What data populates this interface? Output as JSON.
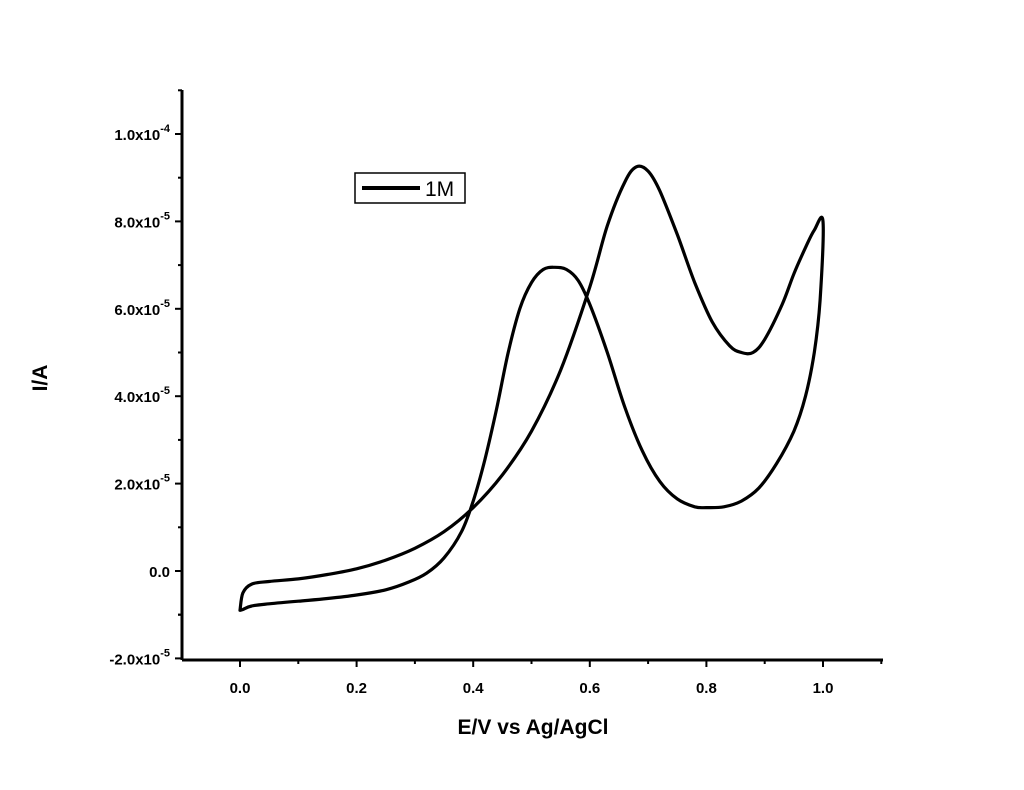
{
  "chart_data": {
    "type": "line",
    "title": "",
    "xlabel": "E/V vs Ag/AgCl",
    "ylabel": "I/A",
    "xlim": [
      -0.1,
      1.1
    ],
    "ylim": [
      -2.2e-05,
      0.00011
    ],
    "grid": false,
    "legend_position": "top-left",
    "x_ticks": [
      {
        "value": 0.0,
        "label": "0.0"
      },
      {
        "value": 0.2,
        "label": "0.2"
      },
      {
        "value": 0.4,
        "label": "0.4"
      },
      {
        "value": 0.6,
        "label": "0.6"
      },
      {
        "value": 0.8,
        "label": "0.8"
      },
      {
        "value": 1.0,
        "label": "1.0"
      }
    ],
    "y_ticks": [
      {
        "value": -2e-05,
        "mantissa": "-2.0x10",
        "exp": "-5"
      },
      {
        "value": 0.0,
        "mantissa": "0.0",
        "exp": ""
      },
      {
        "value": 2e-05,
        "mantissa": "2.0x10",
        "exp": "-5"
      },
      {
        "value": 4e-05,
        "mantissa": "4.0x10",
        "exp": "-5"
      },
      {
        "value": 6e-05,
        "mantissa": "6.0x10",
        "exp": "-5"
      },
      {
        "value": 8e-05,
        "mantissa": "8.0x10",
        "exp": "-5"
      },
      {
        "value": 0.0001,
        "mantissa": "1.0x10",
        "exp": "-4"
      }
    ],
    "series": [
      {
        "name": "1M",
        "color": "#000000",
        "x": [
          0.0,
          0.005,
          0.02,
          0.05,
          0.1,
          0.15,
          0.2,
          0.25,
          0.3,
          0.35,
          0.4,
          0.45,
          0.5,
          0.55,
          0.6,
          0.63,
          0.66,
          0.68,
          0.7,
          0.72,
          0.75,
          0.78,
          0.81,
          0.84,
          0.86,
          0.88,
          0.9,
          0.93,
          0.95,
          0.97,
          0.985,
          1.0,
          0.995,
          0.985,
          0.97,
          0.95,
          0.92,
          0.89,
          0.86,
          0.83,
          0.8,
          0.78,
          0.75,
          0.72,
          0.69,
          0.66,
          0.63,
          0.6,
          0.58,
          0.56,
          0.54,
          0.52,
          0.5,
          0.48,
          0.46,
          0.44,
          0.42,
          0.4,
          0.38,
          0.35,
          0.32,
          0.29,
          0.25,
          0.2,
          0.15,
          0.1,
          0.05,
          0.02,
          0.005,
          0.0
        ],
        "y": [
          -9e-06,
          -5e-06,
          -3e-06,
          -2.4e-06,
          -1.8e-06,
          -8e-07,
          5e-07,
          2.5e-06,
          5.2e-06,
          9e-06,
          1.45e-05,
          2.2e-05,
          3.2e-05,
          4.6e-05,
          6.5e-05,
          7.9e-05,
          8.9e-05,
          9.25e-05,
          9.15e-05,
          8.7e-05,
          7.7e-05,
          6.6e-05,
          5.7e-05,
          5.15e-05,
          5e-05,
          5e-05,
          5.3e-05,
          6.1e-05,
          6.8e-05,
          7.4e-05,
          7.8e-05,
          8e-05,
          6.2e-05,
          5e-05,
          4e-05,
          3.2e-05,
          2.45e-05,
          1.9e-05,
          1.6e-05,
          1.47e-05,
          1.45e-05,
          1.47e-05,
          1.65e-05,
          2.05e-05,
          2.75e-05,
          3.75e-05,
          5e-05,
          6.1e-05,
          6.65e-05,
          6.9e-05,
          6.95e-05,
          6.9e-05,
          6.6e-05,
          6e-05,
          5e-05,
          3.7e-05,
          2.55e-05,
          1.6e-05,
          9e-06,
          3e-06,
          -5e-07,
          -2.5e-06,
          -4.3e-06,
          -5.5e-06,
          -6.3e-06,
          -6.9e-06,
          -7.5e-06,
          -8e-06,
          -8.8e-06,
          -9e-06
        ]
      }
    ],
    "legend": [
      {
        "label": "1M"
      }
    ]
  }
}
